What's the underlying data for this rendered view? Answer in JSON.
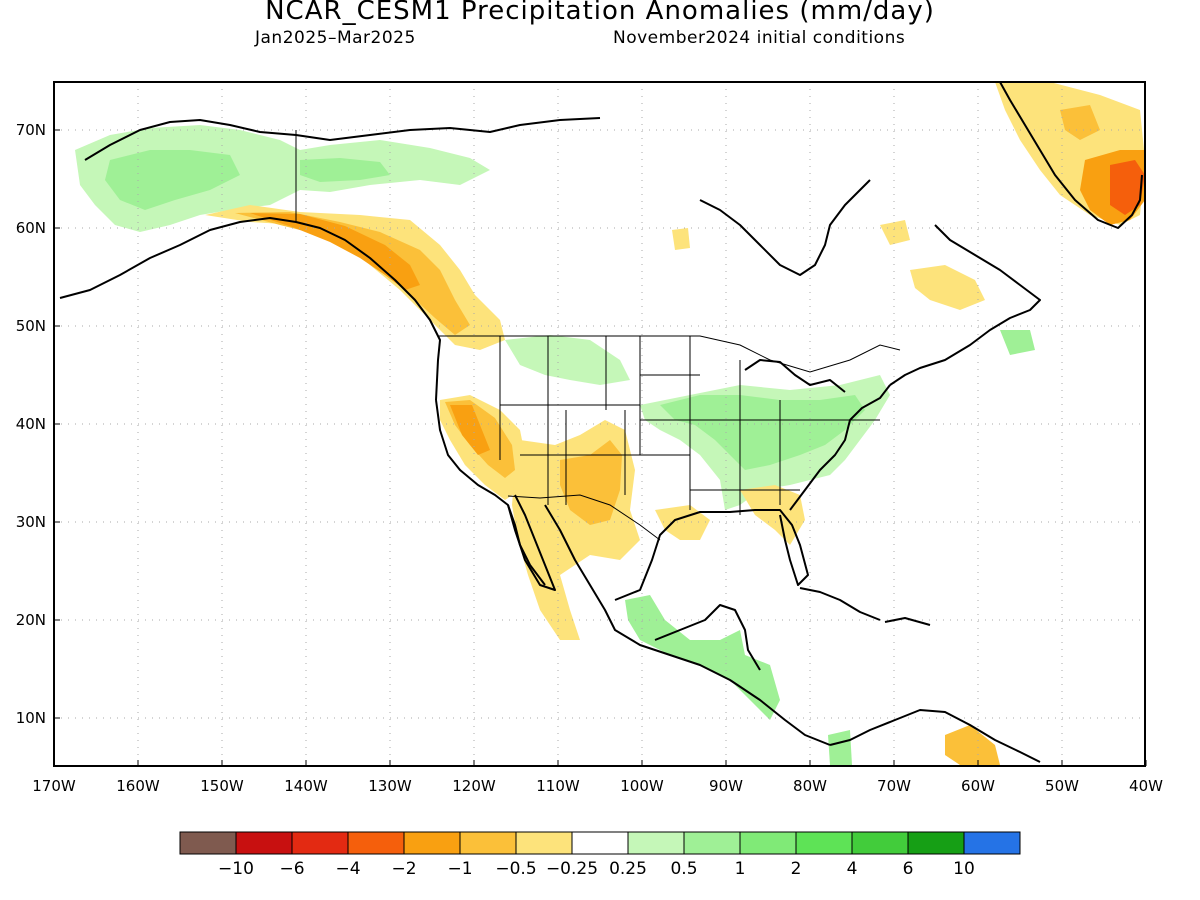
{
  "title": "NCAR_CESM1 Precipitation Anomalies (mm/day)",
  "subtitle_left": "Jan2025–Mar2025",
  "subtitle_right": "November2024 initial conditions",
  "map": {
    "lon_range": [
      -170,
      -40
    ],
    "lat_range": [
      5,
      75
    ],
    "lat_labels": [
      "70N",
      "60N",
      "50N",
      "40N",
      "30N",
      "20N",
      "10N"
    ],
    "lon_labels": [
      "170W",
      "160W",
      "150W",
      "140W",
      "130W",
      "120W",
      "110W",
      "100W",
      "90W",
      "80W",
      "70W",
      "60W",
      "50W",
      "40W"
    ]
  },
  "colorbar": {
    "colors": [
      "#7f5a4f",
      "#c81010",
      "#e32a12",
      "#f55f0c",
      "#f9a011",
      "#fbc039",
      "#fde37b",
      "#ffffff",
      "#c5f7b8",
      "#9ff096",
      "#80ea77",
      "#5ee356",
      "#42cc3b",
      "#169f15",
      "#2573e6"
    ],
    "labels": [
      "−10",
      "−6",
      "−4",
      "−2",
      "−1",
      "−0.5",
      "−0.25",
      "0.25",
      "0.5",
      "1",
      "2",
      "4",
      "6",
      "10"
    ]
  }
}
